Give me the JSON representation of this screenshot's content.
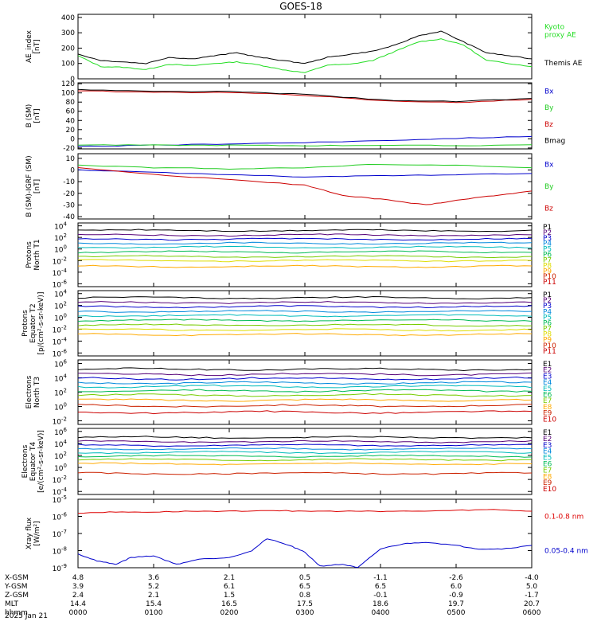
{
  "title": "GOES-18",
  "date": "2025 Jan 21",
  "time_ticks": [
    "0000",
    "0100",
    "0200",
    "0300",
    "0400",
    "0500",
    "0600"
  ],
  "chart_data": [
    {
      "type": "line",
      "ylabel": [
        "AE_index",
        "[nT]"
      ],
      "scale": "linear",
      "ylim": [
        0,
        420
      ],
      "yticks": [
        0,
        100,
        200,
        300,
        400
      ],
      "series": [
        {
          "name": "Kyoto proxy AE",
          "label_lines": [
            "Kyoto",
            "proxy AE"
          ],
          "color": "#22dd22",
          "x": [
            0,
            0.3,
            0.6,
            0.9,
            1.2,
            1.5,
            1.8,
            2.1,
            2.4,
            2.7,
            3.0,
            3.3,
            3.6,
            3.9,
            4.2,
            4.5,
            4.8,
            5.1,
            5.4,
            5.7,
            6.0
          ],
          "y": [
            150,
            80,
            75,
            60,
            95,
            85,
            100,
            110,
            90,
            60,
            40,
            90,
            95,
            120,
            180,
            240,
            260,
            220,
            120,
            100,
            80
          ]
        },
        {
          "name": "Themis AE",
          "label_lines": [
            "Themis AE"
          ],
          "color": "#000000",
          "x": [
            0,
            0.3,
            0.6,
            0.9,
            1.2,
            1.5,
            1.8,
            2.1,
            2.4,
            2.7,
            3.0,
            3.3,
            3.6,
            3.9,
            4.2,
            4.5,
            4.8,
            5.1,
            5.4,
            5.7,
            6.0
          ],
          "y": [
            160,
            120,
            110,
            100,
            140,
            130,
            150,
            170,
            140,
            120,
            100,
            140,
            160,
            180,
            220,
            280,
            310,
            240,
            170,
            150,
            130
          ]
        }
      ]
    },
    {
      "type": "line",
      "ylabel": [
        "B (SM)",
        "[nT]"
      ],
      "scale": "linear",
      "ylim": [
        -22,
        122
      ],
      "yticks": [
        -20,
        0,
        20,
        40,
        60,
        80,
        100,
        120
      ],
      "series": [
        {
          "name": "Bx",
          "color": "#0000cc",
          "x": [
            0,
            1,
            2,
            3,
            4,
            5,
            6
          ],
          "y": [
            -17,
            -14,
            -11,
            -8,
            -4,
            1,
            5
          ]
        },
        {
          "name": "By",
          "color": "#22cc22",
          "x": [
            0,
            1,
            2,
            3,
            4,
            5,
            6
          ],
          "y": [
            -13,
            -14,
            -14,
            -15,
            -14,
            -15,
            -13
          ]
        },
        {
          "name": "Bz",
          "color": "#cc0000",
          "x": [
            0,
            1,
            2,
            3,
            4,
            5,
            6
          ],
          "y": [
            105,
            101,
            101,
            95,
            83,
            79,
            86
          ]
        },
        {
          "name": "Bmag",
          "color": "#000000",
          "x": [
            0,
            1,
            2,
            3,
            4,
            5,
            6
          ],
          "y": [
            107,
            103,
            103,
            97,
            85,
            81,
            88
          ]
        }
      ]
    },
    {
      "type": "line",
      "ylabel": [
        "B (SM)-IGRF (SM)",
        "[nT]"
      ],
      "scale": "linear",
      "ylim": [
        -42,
        14
      ],
      "yticks": [
        -40,
        -30,
        -20,
        -10,
        0,
        10
      ],
      "series": [
        {
          "name": "Bx",
          "color": "#0000cc",
          "x": [
            0,
            1,
            2,
            3,
            4,
            5,
            6
          ],
          "y": [
            0,
            -2,
            -4,
            -6,
            -5,
            -4,
            -3
          ]
        },
        {
          "name": "By",
          "color": "#22cc22",
          "x": [
            0,
            1,
            2,
            3,
            4,
            5,
            6
          ],
          "y": [
            4,
            2,
            1,
            2,
            5,
            4,
            2
          ]
        },
        {
          "name": "Bz",
          "color": "#cc0000",
          "x": [
            0,
            1,
            2,
            3,
            3.5,
            4,
            4.6,
            5,
            5.5,
            6
          ],
          "y": [
            2,
            -4,
            -8,
            -13,
            -22,
            -25,
            -30,
            -26,
            -22,
            -18
          ]
        }
      ]
    },
    {
      "type": "line",
      "ylabel": [
        "Protons",
        "North T1"
      ],
      "scale": "log",
      "ylim": [
        -6.5,
        4.5
      ],
      "yticks": [
        4,
        2,
        0,
        -2,
        -4,
        -6
      ],
      "series": [
        {
          "name": "P1",
          "color": "#000000",
          "level": 3.2
        },
        {
          "name": "P2",
          "color": "#550077",
          "level": 2.4
        },
        {
          "name": "P3",
          "color": "#0000cc",
          "level": 1.7
        },
        {
          "name": "P4",
          "color": "#0088dd",
          "level": 1.0
        },
        {
          "name": "P5",
          "color": "#00bbbb",
          "level": 0.3
        },
        {
          "name": "P6",
          "color": "#00bb55",
          "level": -0.5
        },
        {
          "name": "P7",
          "color": "#77cc00",
          "level": -1.3
        },
        {
          "name": "P8",
          "color": "#dddd00",
          "level": -2.0
        },
        {
          "name": "P9",
          "color": "#ffaa00",
          "level": -3.0
        },
        {
          "name": "P10",
          "color": "#cc2200",
          "level": null
        },
        {
          "name": "P11",
          "color": "#cc0000",
          "level": null
        }
      ]
    },
    {
      "type": "line",
      "ylabel": [
        "Protons",
        "Equator T2",
        "[p/(cm²-s-sr-keV)]"
      ],
      "scale": "log",
      "ylim": [
        -6.5,
        4.5
      ],
      "yticks": [
        4,
        2,
        0,
        -2,
        -4,
        -6
      ],
      "series": [
        {
          "name": "P1",
          "color": "#000000",
          "level": 3.3
        },
        {
          "name": "P2",
          "color": "#550077",
          "level": 2.5
        },
        {
          "name": "P3",
          "color": "#0000cc",
          "level": 1.8
        },
        {
          "name": "P4",
          "color": "#0088dd",
          "level": 1.0
        },
        {
          "name": "P5",
          "color": "#00bbbb",
          "level": 0.3
        },
        {
          "name": "P6",
          "color": "#00bb55",
          "level": -0.5
        },
        {
          "name": "P7",
          "color": "#77cc00",
          "level": -1.3
        },
        {
          "name": "P8",
          "color": "#dddd00",
          "level": -2.1
        },
        {
          "name": "P9",
          "color": "#ffaa00",
          "level": -2.9
        },
        {
          "name": "P10",
          "color": "#cc2200",
          "level": null
        },
        {
          "name": "P11",
          "color": "#cc0000",
          "level": null
        }
      ]
    },
    {
      "type": "line",
      "ylabel": [
        "Electrons",
        "North T3"
      ],
      "scale": "log",
      "ylim": [
        -2.5,
        6.5
      ],
      "yticks": [
        6,
        4,
        2,
        0,
        -2
      ],
      "series": [
        {
          "name": "E1",
          "color": "#000000",
          "level": 5.2
        },
        {
          "name": "E2",
          "color": "#550077",
          "level": 4.5
        },
        {
          "name": "E3",
          "color": "#0000cc",
          "level": 3.9
        },
        {
          "name": "E4",
          "color": "#0088dd",
          "level": 3.3
        },
        {
          "name": "E5",
          "color": "#00bbbb",
          "level": 2.8
        },
        {
          "name": "E6",
          "color": "#00bb55",
          "level": 2.2
        },
        {
          "name": "E7",
          "color": "#77cc00",
          "level": 1.6
        },
        {
          "name": "E8",
          "color": "#ffaa00",
          "level": 0.9
        },
        {
          "name": "E9",
          "color": "#cc2200",
          "level": 0.1
        },
        {
          "name": "E10",
          "color": "#cc0000",
          "level": -0.8
        }
      ]
    },
    {
      "type": "line",
      "ylabel": [
        "Electrons",
        "Equator T4",
        "[e/(cm²-s-sr-keV)]"
      ],
      "scale": "log",
      "ylim": [
        -4.5,
        6.5
      ],
      "yticks": [
        6,
        4,
        2,
        0,
        -2,
        -4
      ],
      "series": [
        {
          "name": "E1",
          "color": "#000000",
          "level": 5.0
        },
        {
          "name": "E2",
          "color": "#550077",
          "level": 4.3
        },
        {
          "name": "E3",
          "color": "#0000cc",
          "level": 3.7
        },
        {
          "name": "E4",
          "color": "#0088dd",
          "level": 3.1
        },
        {
          "name": "E5",
          "color": "#00bbbb",
          "level": 2.5
        },
        {
          "name": "E6",
          "color": "#00bb55",
          "level": 1.9
        },
        {
          "name": "E7",
          "color": "#77cc00",
          "level": 1.3
        },
        {
          "name": "E8",
          "color": "#ffaa00",
          "level": 0.6
        },
        {
          "name": "E9",
          "color": "#cc2200",
          "level": -1.0
        },
        {
          "name": "E10",
          "color": "#cc0000",
          "level": null
        }
      ]
    },
    {
      "type": "line",
      "ylabel": [
        "Xray flux",
        "[W/m²]"
      ],
      "scale": "log",
      "ylim": [
        -9,
        -5
      ],
      "yticks": [
        -5,
        -6,
        -7,
        -8,
        -9
      ],
      "series": [
        {
          "name": "0.1-0.8 nm",
          "color": "#dd0000",
          "x": [
            0,
            0.5,
            1,
            1.5,
            2,
            2.5,
            3,
            3.5,
            4,
            4.5,
            5,
            5.5,
            6
          ],
          "y": [
            -5.8,
            -5.75,
            -5.75,
            -5.7,
            -5.7,
            -5.65,
            -5.7,
            -5.7,
            -5.7,
            -5.7,
            -5.65,
            -5.6,
            -5.7
          ]
        },
        {
          "name": "0.05-0.4 nm",
          "color": "#0000cc",
          "x": [
            0,
            0.25,
            0.5,
            0.7,
            1,
            1.3,
            1.6,
            2,
            2.3,
            2.5,
            2.8,
            3,
            3.2,
            3.5,
            3.7,
            4,
            4.3,
            4.6,
            5,
            5.3,
            5.6,
            6
          ],
          "y": [
            -8.2,
            -8.6,
            -8.8,
            -8.4,
            -8.3,
            -8.8,
            -8.5,
            -8.4,
            -8.0,
            -7.3,
            -7.7,
            -8.1,
            -8.9,
            -8.8,
            -9.0,
            -7.9,
            -7.6,
            -7.5,
            -7.7,
            -7.9,
            -7.9,
            -7.7
          ]
        }
      ]
    }
  ],
  "orbit_table": {
    "rows": [
      {
        "label": "X-GSM",
        "values": [
          "4.8",
          "3.6",
          "2.1",
          "0.5",
          "-1.1",
          "-2.6",
          "-4.0"
        ]
      },
      {
        "label": "Y-GSM",
        "values": [
          "3.9",
          "5.2",
          "6.1",
          "6.5",
          "6.5",
          "6.0",
          "5.0"
        ]
      },
      {
        "label": "Z-GSM",
        "values": [
          "2.4",
          "2.1",
          "1.5",
          "0.8",
          "-0.1",
          "-0.9",
          "-1.7"
        ]
      },
      {
        "label": "MLT",
        "values": [
          "14.4",
          "15.4",
          "16.5",
          "17.5",
          "18.6",
          "19.7",
          "20.7"
        ]
      },
      {
        "label": "hhmm",
        "values": [
          "0000",
          "0100",
          "0200",
          "0300",
          "0400",
          "0500",
          "0600"
        ]
      }
    ]
  },
  "colors": {
    "axis": "#000000",
    "background": "#ffffff"
  }
}
